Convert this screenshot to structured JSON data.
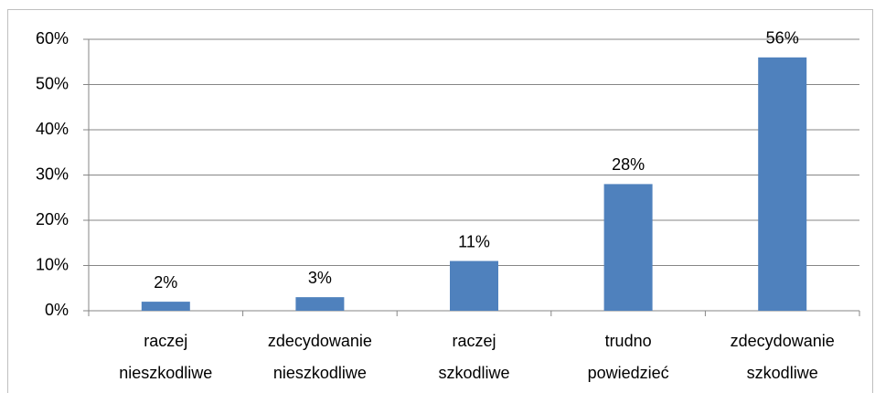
{
  "chart_data": {
    "type": "bar",
    "categories": [
      [
        "raczej",
        "nieszkodliwe"
      ],
      [
        "zdecydowanie",
        "nieszkodliwe"
      ],
      [
        "raczej",
        "szkodliwe"
      ],
      [
        "trudno",
        "powiedzieć"
      ],
      [
        "zdecydowanie",
        "szkodliwe"
      ]
    ],
    "values": [
      2,
      3,
      11,
      28,
      56
    ],
    "value_labels": [
      "2%",
      "3%",
      "11%",
      "28%",
      "56%"
    ],
    "color": "#4f81bd",
    "ylim": [
      0,
      60
    ],
    "yticks": [
      {
        "value": 0,
        "label": "0%"
      },
      {
        "value": 10,
        "label": "10%"
      },
      {
        "value": 20,
        "label": "20%"
      },
      {
        "value": 30,
        "label": "30%"
      },
      {
        "value": 40,
        "label": "40%"
      },
      {
        "value": 50,
        "label": "50%"
      },
      {
        "value": 60,
        "label": "60%"
      }
    ],
    "grid": true
  }
}
